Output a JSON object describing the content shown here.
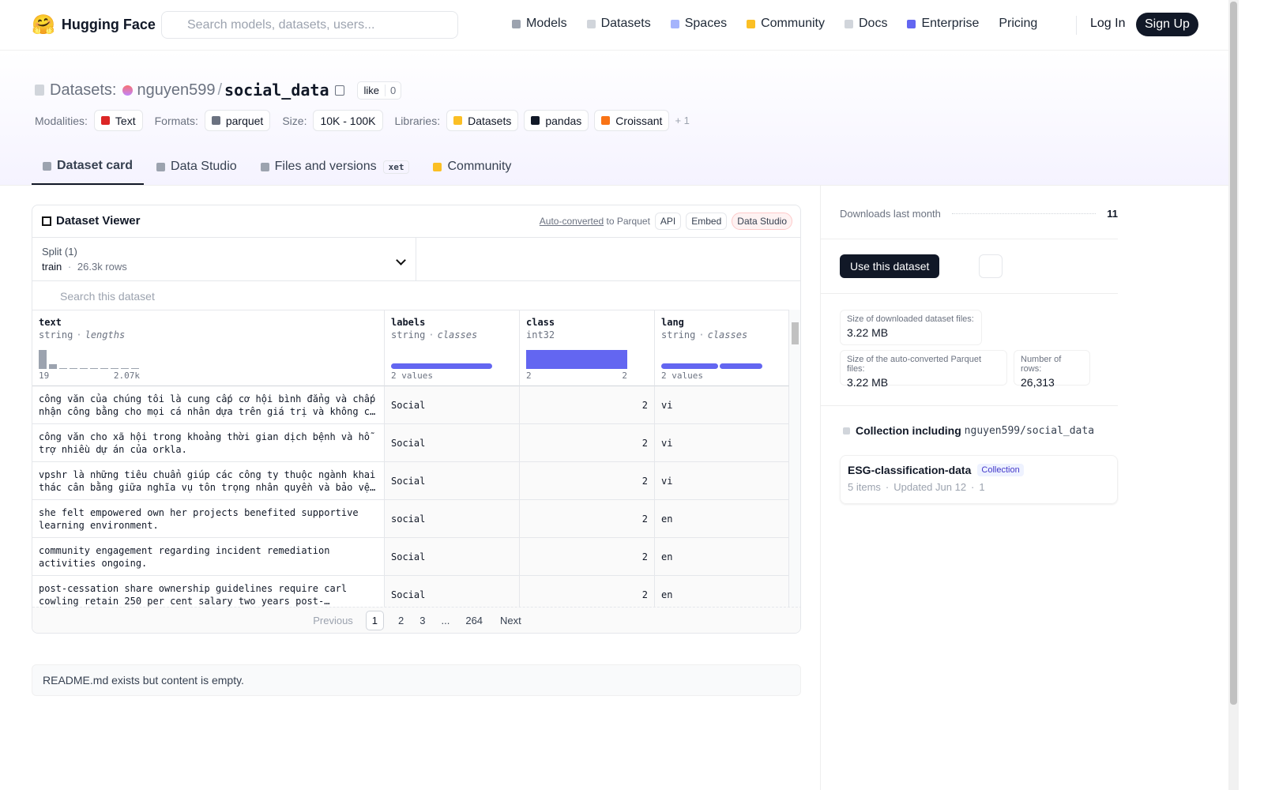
{
  "nav": {
    "brand": "Hugging Face",
    "search": "Search models, datasets, users...",
    "links": [
      "Models",
      "Datasets",
      "Spaces",
      "Community",
      "Docs",
      "Enterprise",
      "Pricing"
    ],
    "login": "Log In",
    "signup": "Sign Up"
  },
  "header": {
    "kind": "Datasets:",
    "owner": "nguyen599",
    "separator": "/",
    "name": "social_data",
    "like": "like",
    "likes": 0,
    "tags": [
      {
        "label": "Modalities:",
        "items": [
          "Text"
        ]
      },
      {
        "label": "Formats:",
        "items": [
          "parquet"
        ]
      },
      {
        "label": "Size:",
        "items": [
          "10K - 100K"
        ]
      },
      {
        "label": "Libraries:",
        "items": [
          "Datasets",
          "pandas",
          "Croissant"
        ]
      }
    ],
    "more": "+ 1"
  },
  "tabs": [
    {
      "label": "Dataset card"
    },
    {
      "label": "Data Studio"
    },
    {
      "label": "Files and versions",
      "badge": "xet"
    },
    {
      "label": "Community"
    }
  ],
  "viewer": {
    "title": "Dataset Viewer",
    "converted": "Auto-converted",
    "converted_suffix": "to Parquet",
    "actions": [
      "API",
      "Embed",
      "Data Studio"
    ],
    "split_label": "Split (1)",
    "split": "train",
    "sep": "·",
    "split_rows": "26.3k rows",
    "search": "Search this dataset",
    "columns": [
      {
        "name": "text",
        "type": "string",
        "stat": "lengths",
        "range": [
          "19",
          "2.07k"
        ]
      },
      {
        "name": "labels",
        "type": "string",
        "stat": "classes",
        "summary": "2 values"
      },
      {
        "name": "class",
        "type": "int32",
        "range": [
          "2",
          "2"
        ]
      },
      {
        "name": "lang",
        "type": "string",
        "stat": "classes",
        "summary": "2 values"
      }
    ],
    "rows": [
      [
        "công văn của chúng tôi là cung cấp cơ hội bình đẳng và chấp nhận công bằng cho mọi cá nhân dựa trên giá trị và không có s…",
        "Social",
        2,
        "vi"
      ],
      [
        "công văn cho xã hội trong khoảng thời gian dịch bệnh và hỗ trợ nhiều dự án của orkla.",
        "Social",
        2,
        "vi"
      ],
      [
        "vpshr là những tiêu chuẩn giúp các công ty thuộc ngành khai thác cân bằng giữa nghĩa vụ tôn trọng nhân quyền và bảo vệ tà…",
        "Social",
        2,
        "vi"
      ],
      [
        "she felt empowered own her projects benefited supportive learning environment.",
        "social",
        2,
        "en"
      ],
      [
        "community engagement regarding incident remediation activities ongoing.",
        "Social",
        2,
        "en"
      ],
      [
        "post-cessation share ownership guidelines require carl cowling retain 250 per cent salary two years post-cessation…",
        "Social",
        2,
        "en"
      ]
    ],
    "pagination": {
      "previous": "Previous",
      "pages": [
        "1",
        "2",
        "3",
        "...",
        "264"
      ],
      "next": "Next"
    }
  },
  "readme": "README.md exists but content is empty.",
  "sidebar": {
    "downloads_label": "Downloads last month",
    "downloads": 11,
    "use": "Use this dataset",
    "stats": [
      {
        "label": "Size of downloaded dataset files:",
        "value": "3.22 MB"
      },
      {
        "label": "Size of the auto-converted Parquet files:",
        "value": "3.22 MB"
      },
      {
        "label": "Number of rows:",
        "value": "26,313"
      }
    ],
    "collection_heading": "Collection including",
    "collection_repo": "nguyen599/social_data",
    "collection": {
      "name": "ESG-classification-data",
      "badge": "Collection",
      "items": "5 items",
      "updated": "Updated Jun 12",
      "likes": 1
    }
  }
}
